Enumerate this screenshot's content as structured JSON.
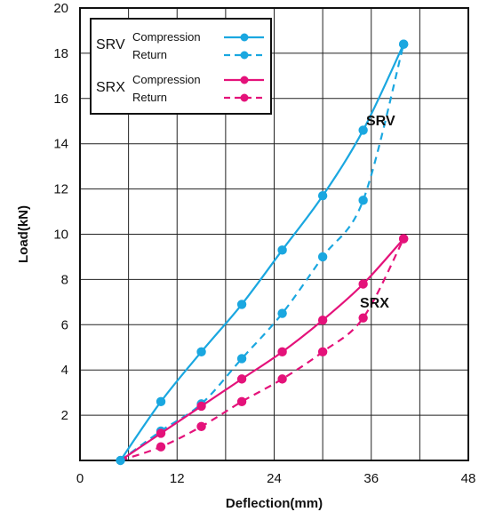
{
  "chart_data": {
    "type": "line",
    "xlabel": "Deflection(mm)",
    "ylabel": "Load(kN)",
    "xlim": [
      0,
      48
    ],
    "ylim": [
      0,
      20
    ],
    "x_ticks": [
      "0",
      "12",
      "24",
      "36",
      "48"
    ],
    "y_ticks": [
      "2",
      "4",
      "6",
      "8",
      "10",
      "12",
      "14",
      "16",
      "18",
      "20"
    ],
    "grid": true,
    "legend_position": "top-left",
    "legend": {
      "groups": [
        {
          "label": "SRV",
          "entries": [
            "Compression",
            "Return"
          ]
        },
        {
          "label": "SRX",
          "entries": [
            "Compression",
            "Return"
          ]
        }
      ]
    },
    "annotations": [
      "SRV",
      "SRX"
    ],
    "series": [
      {
        "group": "SRV",
        "kind": "Compression",
        "color": "#1aa7e0",
        "style": "solid",
        "points": [
          [
            5,
            0
          ],
          [
            10,
            2.6
          ],
          [
            15,
            4.8
          ],
          [
            20,
            6.9
          ],
          [
            25,
            9.3
          ],
          [
            30,
            11.7
          ],
          [
            35,
            14.6
          ],
          [
            40,
            18.4
          ]
        ]
      },
      {
        "group": "SRV",
        "kind": "Return",
        "color": "#1aa7e0",
        "style": "dashed",
        "points": [
          [
            5,
            0
          ],
          [
            10,
            1.3
          ],
          [
            15,
            2.5
          ],
          [
            20,
            4.5
          ],
          [
            25,
            6.5
          ],
          [
            30,
            9.0
          ],
          [
            35,
            11.5
          ],
          [
            40,
            18.4
          ]
        ]
      },
      {
        "group": "SRX",
        "kind": "Compression",
        "color": "#e4127a",
        "style": "solid",
        "points": [
          [
            5,
            0
          ],
          [
            10,
            1.2
          ],
          [
            15,
            2.4
          ],
          [
            20,
            3.6
          ],
          [
            25,
            4.8
          ],
          [
            30,
            6.2
          ],
          [
            35,
            7.8
          ],
          [
            40,
            9.8
          ]
        ]
      },
      {
        "group": "SRX",
        "kind": "Return",
        "color": "#e4127a",
        "style": "dashed",
        "points": [
          [
            5,
            0
          ],
          [
            10,
            0.6
          ],
          [
            15,
            1.5
          ],
          [
            20,
            2.6
          ],
          [
            25,
            3.6
          ],
          [
            30,
            4.8
          ],
          [
            35,
            6.3
          ],
          [
            40,
            9.8
          ]
        ]
      }
    ]
  }
}
